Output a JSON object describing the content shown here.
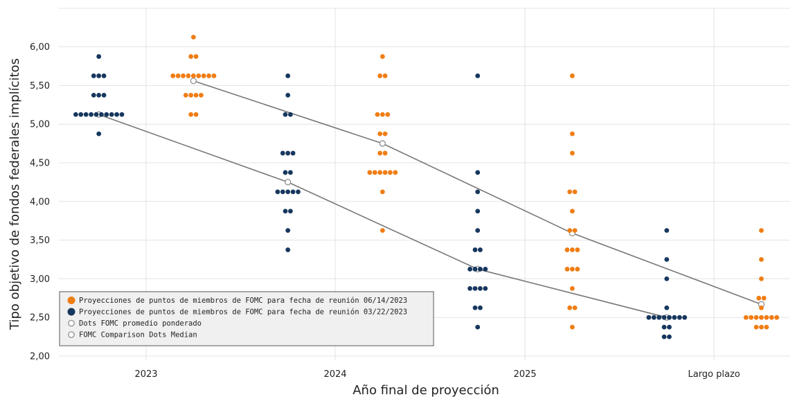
{
  "chart_data": {
    "type": "scatter",
    "xlabel": "Año final de proyección",
    "ylabel": "Tipo objetivo de fondos federales implícitos",
    "ylim": [
      2.0,
      6.25
    ],
    "yticks": [
      "2,00",
      "2,50",
      "3,00",
      "3,50",
      "4,00",
      "4,50",
      "5,00",
      "5,50",
      "6,00"
    ],
    "categories": [
      "2023",
      "2024",
      "2025",
      "Largo plazo"
    ],
    "grid": true,
    "legend_position": "bottom-left",
    "colors": {
      "june": "#f07d14",
      "march": "#17375e",
      "line": "#888888"
    },
    "series": [
      {
        "name": "Proyecciones de puntos de miembros de FOMC para fecha de reunión 06/14/2023",
        "kind": "dots",
        "color": "#f07d14",
        "offset": 0.25,
        "points": {
          "2023": [
            [
              6.125,
              1
            ],
            [
              5.875,
              2
            ],
            [
              5.625,
              9
            ],
            [
              5.375,
              4
            ],
            [
              5.125,
              2
            ]
          ],
          "2024": [
            [
              5.875,
              1
            ],
            [
              5.625,
              2
            ],
            [
              5.125,
              3
            ],
            [
              4.875,
              2
            ],
            [
              4.625,
              2
            ],
            [
              4.375,
              6
            ],
            [
              4.125,
              1
            ],
            [
              3.625,
              1
            ]
          ],
          "2025": [
            [
              5.625,
              1
            ],
            [
              4.875,
              1
            ],
            [
              4.625,
              1
            ],
            [
              4.125,
              2
            ],
            [
              3.875,
              1
            ],
            [
              3.625,
              2
            ],
            [
              3.375,
              3
            ],
            [
              3.125,
              3
            ],
            [
              2.875,
              1
            ],
            [
              2.625,
              2
            ],
            [
              2.375,
              1
            ]
          ],
          "Largo plazo": [
            [
              3.625,
              1
            ],
            [
              3.25,
              1
            ],
            [
              3.0,
              1
            ],
            [
              2.75,
              2
            ],
            [
              2.625,
              1
            ],
            [
              2.5,
              7
            ],
            [
              2.375,
              3
            ]
          ]
        }
      },
      {
        "name": "Proyecciones de puntos de miembros de FOMC para fecha de reunión 03/22/2023",
        "kind": "dots",
        "color": "#17375e",
        "offset": -0.25,
        "points": {
          "2023": [
            [
              5.875,
              1
            ],
            [
              5.625,
              3
            ],
            [
              5.375,
              3
            ],
            [
              5.125,
              10
            ],
            [
              4.875,
              1
            ]
          ],
          "2024": [
            [
              5.625,
              1
            ],
            [
              5.375,
              1
            ],
            [
              5.125,
              2
            ],
            [
              4.625,
              3
            ],
            [
              4.375,
              2
            ],
            [
              4.125,
              5
            ],
            [
              3.875,
              2
            ],
            [
              3.625,
              1
            ],
            [
              3.375,
              1
            ]
          ],
          "2025": [
            [
              5.625,
              1
            ],
            [
              4.375,
              1
            ],
            [
              4.125,
              1
            ],
            [
              3.875,
              1
            ],
            [
              3.625,
              1
            ],
            [
              3.375,
              2
            ],
            [
              3.125,
              4
            ],
            [
              2.875,
              4
            ],
            [
              2.625,
              2
            ],
            [
              2.375,
              1
            ]
          ],
          "Largo plazo": [
            [
              3.625,
              1
            ],
            [
              3.25,
              1
            ],
            [
              3.0,
              1
            ],
            [
              2.625,
              1
            ],
            [
              2.5,
              8
            ],
            [
              2.375,
              2
            ],
            [
              2.25,
              2
            ]
          ]
        }
      },
      {
        "name": "Dots FOMC promedio ponderado",
        "kind": "line",
        "color": "#888888",
        "x": [
          "2023",
          "2024",
          "2025",
          "Largo plazo"
        ],
        "offset": 0.25,
        "values": [
          5.56,
          4.75,
          3.59,
          2.67
        ]
      },
      {
        "name": "FOMC Comparison Dots Median",
        "kind": "line",
        "color": "#888888",
        "x": [
          "2023",
          "2024",
          "2025",
          "Largo plazo"
        ],
        "offset": -0.25,
        "values": [
          5.125,
          4.25,
          3.125,
          2.5
        ]
      }
    ]
  }
}
